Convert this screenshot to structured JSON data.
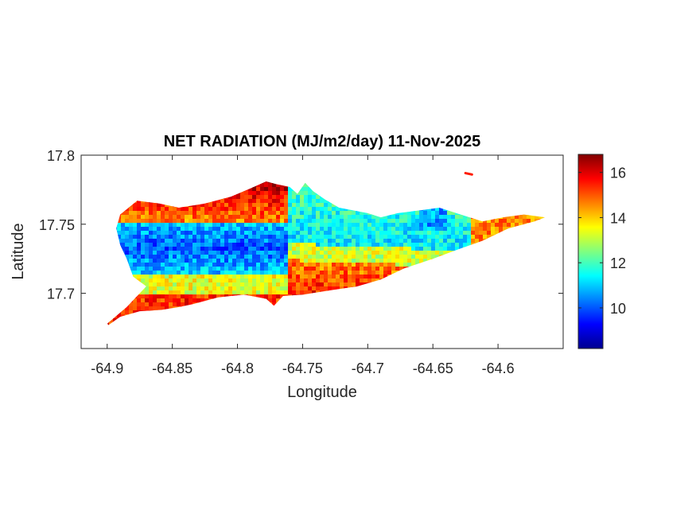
{
  "chart_data": {
    "type": "heatmap",
    "title": "NET RADIATION (MJ/m2/day) 11-Nov-2025",
    "xlabel": "Longitude",
    "ylabel": "Latitude",
    "xlim": [
      -64.92,
      -64.55
    ],
    "ylim": [
      17.66,
      17.8
    ],
    "xticks": [
      -64.9,
      -64.85,
      -64.8,
      -64.75,
      -64.7,
      -64.65,
      -64.6
    ],
    "xtick_labels": [
      "-64.9",
      "-64.85",
      "-64.8",
      "-64.75",
      "-64.7",
      "-64.65",
      "-64.6"
    ],
    "yticks": [
      17.7,
      17.75,
      17.8
    ],
    "ytick_labels": [
      "17.7",
      "17.75",
      "17.8"
    ],
    "colormap": "jet",
    "clim": [
      8.2,
      16.8
    ],
    "colorbar": {
      "ticks": [
        10,
        12,
        14,
        16
      ],
      "tick_labels": [
        "10",
        "12",
        "14",
        "16"
      ]
    },
    "grid": false,
    "region_outline": [
      [
        -64.9,
        17.678
      ],
      [
        -64.885,
        17.69
      ],
      [
        -64.87,
        17.705
      ],
      [
        -64.88,
        17.712
      ],
      [
        -64.885,
        17.725
      ],
      [
        -64.89,
        17.735
      ],
      [
        -64.893,
        17.747
      ],
      [
        -64.89,
        17.757
      ],
      [
        -64.877,
        17.767
      ],
      [
        -64.86,
        17.765
      ],
      [
        -64.845,
        17.762
      ],
      [
        -64.825,
        17.765
      ],
      [
        -64.805,
        17.77
      ],
      [
        -64.79,
        17.776
      ],
      [
        -64.778,
        17.781
      ],
      [
        -64.77,
        17.779
      ],
      [
        -64.76,
        17.777
      ],
      [
        -64.754,
        17.772
      ],
      [
        -64.748,
        17.78
      ],
      [
        -64.742,
        17.774
      ],
      [
        -64.733,
        17.768
      ],
      [
        -64.722,
        17.762
      ],
      [
        -64.7,
        17.758
      ],
      [
        -64.69,
        17.755
      ],
      [
        -64.677,
        17.758
      ],
      [
        -64.66,
        17.76
      ],
      [
        -64.645,
        17.762
      ],
      [
        -64.632,
        17.758
      ],
      [
        -64.612,
        17.752
      ],
      [
        -64.596,
        17.755
      ],
      [
        -64.58,
        17.757
      ],
      [
        -64.564,
        17.755
      ],
      [
        -64.572,
        17.752
      ],
      [
        -64.592,
        17.747
      ],
      [
        -64.612,
        17.738
      ],
      [
        -64.63,
        17.732
      ],
      [
        -64.65,
        17.725
      ],
      [
        -64.672,
        17.718
      ],
      [
        -64.69,
        17.71
      ],
      [
        -64.708,
        17.705
      ],
      [
        -64.73,
        17.702
      ],
      [
        -64.75,
        17.699
      ],
      [
        -64.765,
        17.698
      ],
      [
        -64.772,
        17.691
      ],
      [
        -64.778,
        17.696
      ],
      [
        -64.795,
        17.699
      ],
      [
        -64.815,
        17.697
      ],
      [
        -64.835,
        17.692
      ],
      [
        -64.845,
        17.69
      ],
      [
        -64.858,
        17.688
      ],
      [
        -64.875,
        17.687
      ],
      [
        -64.89,
        17.683
      ],
      [
        -64.899,
        17.677
      ]
    ],
    "islet": [
      [
        -64.625,
        17.787
      ],
      [
        -64.62,
        17.786
      ]
    ],
    "value_bands": [
      {
        "lat_range": [
          17.75,
          17.78
        ],
        "lon_range": [
          -64.9,
          -64.76
        ],
        "approx_value": 14.8
      },
      {
        "lat_range": [
          17.715,
          17.75
        ],
        "lon_range": [
          -64.89,
          -64.77
        ],
        "approx_value": 10.3
      },
      {
        "lat_range": [
          17.735,
          17.757
        ],
        "lon_range": [
          -64.76,
          -64.62
        ],
        "approx_value": 11.5
      },
      {
        "lat_range": [
          17.7,
          17.72
        ],
        "lon_range": [
          -64.89,
          -64.75
        ],
        "approx_value": 13.5
      },
      {
        "lat_range": [
          17.678,
          17.7
        ],
        "lon_range": [
          -64.9,
          -64.8
        ],
        "approx_value": 15.5
      },
      {
        "lat_range": [
          17.7,
          17.735
        ],
        "lon_range": [
          -64.75,
          -64.62
        ],
        "approx_value": 14.5
      },
      {
        "lat_range": [
          17.745,
          17.757
        ],
        "lon_range": [
          -64.62,
          -64.565
        ],
        "approx_value": 14.8
      }
    ]
  }
}
